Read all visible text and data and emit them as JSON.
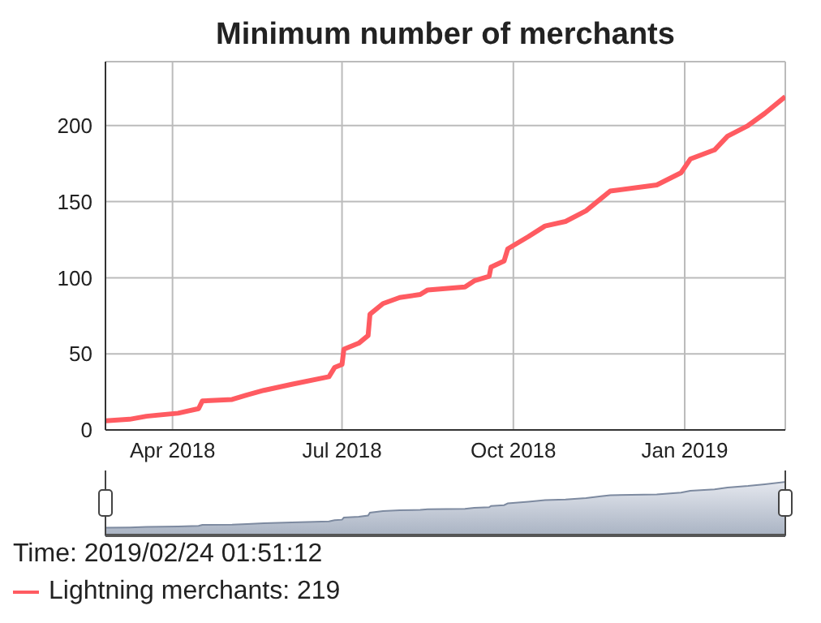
{
  "chart_data": {
    "type": "line",
    "title": "Minimum number of merchants",
    "x": [
      "2018-02-24",
      "2018-03-09",
      "2018-03-18",
      "2018-04-04",
      "2018-04-15",
      "2018-04-17",
      "2018-05-03",
      "2018-05-11",
      "2018-05-20",
      "2018-06-04",
      "2018-06-24",
      "2018-06-27",
      "2018-07-01",
      "2018-07-02",
      "2018-07-10",
      "2018-07-15",
      "2018-07-16",
      "2018-07-23",
      "2018-08-01",
      "2018-08-12",
      "2018-08-16",
      "2018-09-05",
      "2018-09-10",
      "2018-09-18",
      "2018-09-19",
      "2018-09-26",
      "2018-09-28",
      "2018-10-09",
      "2018-10-18",
      "2018-10-29",
      "2018-11-09",
      "2018-11-17",
      "2018-11-22",
      "2018-12-17",
      "2018-12-30",
      "2019-01-04",
      "2019-01-17",
      "2019-01-24",
      "2019-02-04",
      "2019-02-13",
      "2019-02-24"
    ],
    "series": [
      {
        "name": "Lightning merchants: 219",
        "color": "#ff5b61",
        "values": [
          6,
          7,
          9,
          11,
          14,
          19,
          20,
          23,
          26,
          30,
          35,
          41,
          43,
          53,
          57,
          62,
          76,
          83,
          87,
          89,
          92,
          94,
          98,
          101,
          107,
          111,
          119,
          127,
          134,
          137,
          144,
          152,
          157,
          161,
          169,
          178,
          184,
          193,
          200,
          208,
          219
        ]
      }
    ],
    "xlim": [
      "2018-02-24",
      "2019-02-24"
    ],
    "xticks": [
      {
        "value": "2018-04-01",
        "label": "Apr 2018"
      },
      {
        "value": "2018-07-01",
        "label": "Jul 2018"
      },
      {
        "value": "2018-10-01",
        "label": "Oct 2018"
      },
      {
        "value": "2019-01-01",
        "label": "Jan 2019"
      }
    ],
    "ylim": [
      0,
      242
    ],
    "yticks": [
      0,
      50,
      100,
      150,
      200
    ],
    "grid": true,
    "legend": "bottom",
    "marker": "none",
    "line_style": "solid",
    "annotations": [
      "Time: 2019/02/24 01:51:12"
    ]
  }
}
